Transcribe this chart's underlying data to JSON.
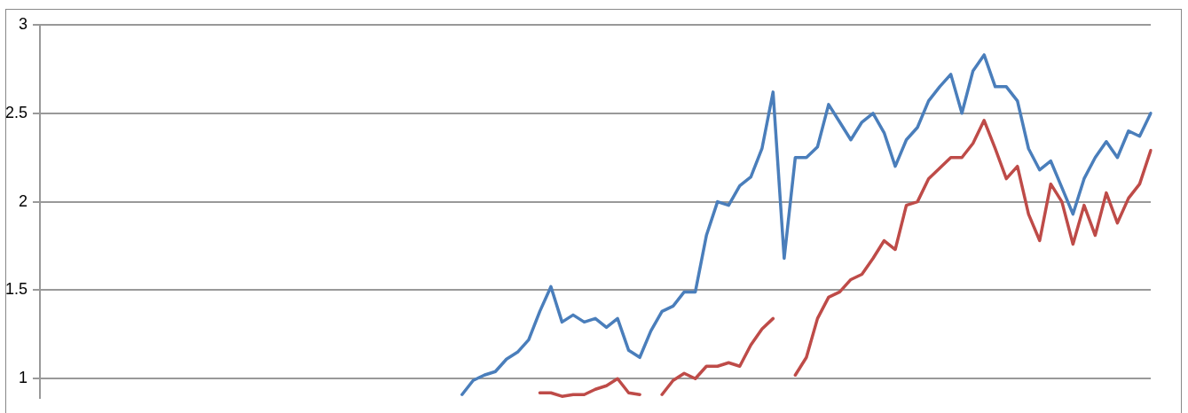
{
  "chart_data": {
    "type": "line",
    "categories": [
      null,
      null,
      null,
      null,
      null,
      null,
      null,
      null,
      null,
      null,
      null,
      null,
      null,
      null,
      null,
      null,
      null,
      null,
      null,
      null,
      null,
      null,
      null,
      null,
      null,
      null,
      null,
      null,
      null,
      null,
      null,
      null,
      null,
      null,
      null,
      null,
      null,
      null,
      null,
      null,
      null,
      null,
      null,
      null,
      null,
      null,
      null,
      null,
      null,
      null,
      null,
      null,
      null,
      null,
      null,
      null,
      null,
      null,
      null,
      null,
      null,
      null,
      null,
      null,
      null,
      null,
      null,
      null,
      null,
      null,
      null,
      null,
      null,
      null,
      null,
      null,
      null,
      null,
      null,
      null,
      null,
      null,
      null,
      null,
      null,
      null,
      null,
      null,
      null,
      null,
      null,
      null,
      null,
      null,
      null,
      null,
      null,
      null,
      null,
      null,
      null
    ],
    "series": [
      {
        "color": "#4a7ebb",
        "values": [
          null,
          null,
          null,
          null,
          null,
          null,
          null,
          null,
          null,
          null,
          null,
          null,
          null,
          null,
          null,
          null,
          null,
          null,
          null,
          null,
          null,
          null,
          null,
          null,
          null,
          null,
          null,
          null,
          null,
          null,
          null,
          null,
          null,
          null,
          null,
          null,
          null,
          null,
          0.91,
          0.99,
          1.02,
          1.04,
          1.11,
          1.15,
          1.22,
          1.38,
          1.52,
          1.32,
          1.36,
          1.32,
          1.34,
          1.29,
          1.34,
          1.16,
          1.12,
          1.27,
          1.38,
          1.41,
          1.49,
          1.49,
          1.81,
          2.0,
          1.98,
          2.09,
          2.14,
          2.3,
          2.62,
          1.68,
          2.25,
          2.25,
          2.31,
          2.55,
          2.45,
          2.35,
          2.45,
          2.5,
          2.39,
          2.2,
          2.35,
          2.42,
          2.57,
          2.65,
          2.72,
          2.5,
          2.74,
          2.83,
          2.65,
          2.65,
          2.57,
          2.3,
          2.18,
          2.23,
          2.08,
          1.93,
          2.13,
          2.25,
          2.34,
          2.25,
          2.4,
          2.37,
          2.5
        ]
      },
      {
        "color": "#be4b48",
        "values": [
          null,
          null,
          null,
          null,
          null,
          null,
          null,
          null,
          null,
          null,
          null,
          null,
          null,
          null,
          null,
          null,
          null,
          null,
          null,
          null,
          null,
          null,
          null,
          null,
          null,
          null,
          null,
          null,
          null,
          null,
          null,
          null,
          null,
          null,
          null,
          null,
          null,
          null,
          null,
          null,
          null,
          null,
          null,
          null,
          null,
          0.92,
          0.92,
          0.9,
          0.91,
          0.91,
          0.94,
          0.96,
          1.0,
          0.92,
          0.91,
          null,
          0.91,
          0.99,
          1.03,
          1.0,
          1.07,
          1.07,
          1.09,
          1.07,
          1.19,
          1.28,
          1.34,
          null,
          1.02,
          1.12,
          1.34,
          1.46,
          1.49,
          1.56,
          1.59,
          1.68,
          1.78,
          1.73,
          1.98,
          2.0,
          2.13,
          2.19,
          2.25,
          2.25,
          2.33,
          2.46,
          2.3,
          2.13,
          2.2,
          1.93,
          1.78,
          2.1,
          2.0,
          1.76,
          1.98,
          1.81,
          2.05,
          1.88,
          2.02,
          2.1,
          2.29
        ]
      }
    ],
    "ylim": [
      0.89,
      3
    ],
    "yticks": [
      1,
      1.5,
      2,
      2.5,
      3
    ],
    "grid": "y",
    "tick_labels": "y"
  }
}
